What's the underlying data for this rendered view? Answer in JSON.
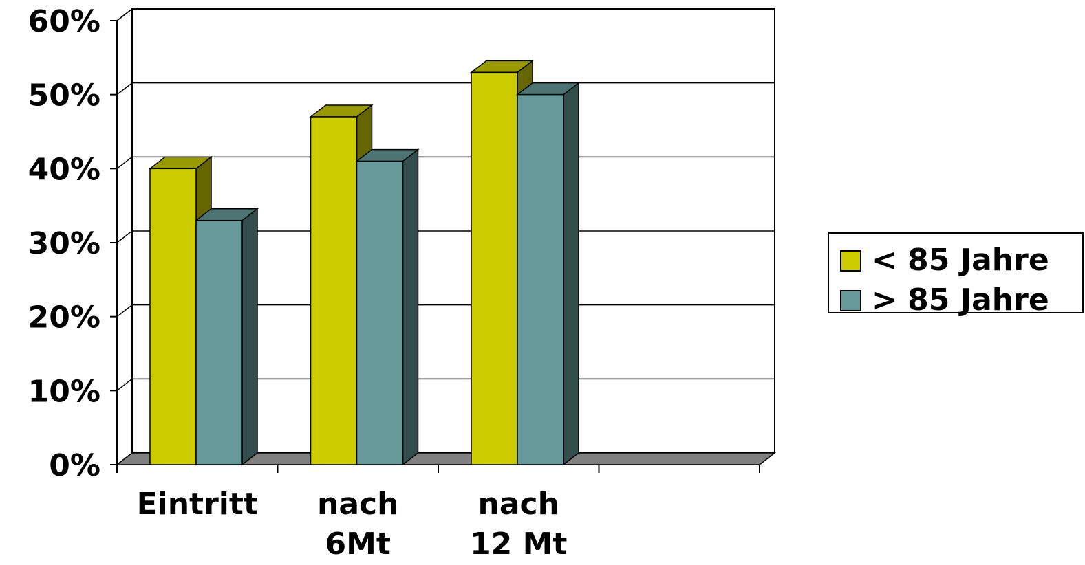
{
  "chart_data": {
    "type": "bar",
    "categories": [
      [
        "Eintritt"
      ],
      [
        "nach",
        "6Mt"
      ],
      [
        "nach",
        "12 Mt"
      ],
      [
        ""
      ]
    ],
    "series": [
      {
        "name": "< 85 Jahre",
        "values": [
          40,
          47,
          53,
          null
        ],
        "color": "#cccc00",
        "top_color": "#999900",
        "side_color": "#666600"
      },
      {
        "name": "> 85 Jahre",
        "values": [
          33,
          41,
          50,
          null
        ],
        "color": "#669999",
        "top_color": "#4d7373",
        "side_color": "#334d4d"
      }
    ],
    "ylim": [
      0,
      60
    ],
    "y_ticks": [
      0,
      10,
      20,
      30,
      40,
      50,
      60
    ],
    "y_tick_labels": [
      "0%",
      "10%",
      "20%",
      "30%",
      "40%",
      "50%",
      "60%"
    ],
    "grid": true,
    "legend": "right",
    "title": "",
    "xlabel": "",
    "ylabel": ""
  }
}
